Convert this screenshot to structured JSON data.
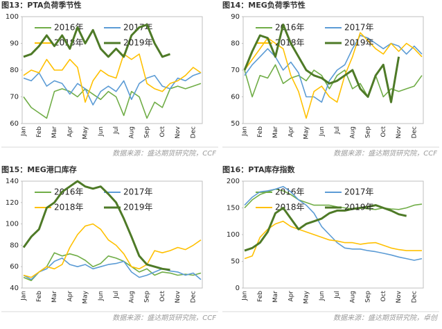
{
  "chart_data": [
    {
      "type": "line",
      "title": "图13：PTA负荷季节性",
      "source": "数据来源：盛达期货研究院，CCF",
      "categories": [
        "Jan",
        null,
        "Feb",
        null,
        "Mar",
        null,
        "Apr",
        null,
        "May",
        null,
        "Jun",
        null,
        "Jul",
        null,
        "Aug",
        null,
        "Sep",
        null,
        "Oct",
        null,
        "Nov",
        null,
        "Dec",
        null
      ],
      "ylim": [
        60,
        100
      ],
      "yticks": [
        60,
        70,
        80,
        90,
        100
      ],
      "series": [
        {
          "name": "2016年",
          "color": "#70ad47",
          "values": [
            70,
            66,
            64,
            62,
            72,
            73,
            72,
            70,
            73,
            71,
            69,
            72,
            70,
            63,
            72,
            70,
            62,
            68,
            66,
            73,
            74,
            73,
            74,
            75
          ]
        },
        {
          "name": "2017年",
          "color": "#5b9bd5",
          "values": [
            77,
            76,
            79,
            74,
            76,
            75,
            71,
            75,
            73,
            67,
            72,
            74,
            72,
            76,
            69,
            75,
            77,
            78,
            74,
            73,
            77,
            76,
            78,
            79
          ]
        },
        {
          "name": "2018年",
          "color": "#ffc000",
          "values": [
            78,
            80,
            79,
            84,
            80,
            80,
            84,
            81,
            68,
            76,
            80,
            78,
            77,
            86,
            84,
            86,
            75,
            73,
            72,
            75,
            76,
            78,
            81,
            79
          ]
        },
        {
          "name": "2019年",
          "color": "#4e7a27",
          "values": [
            85,
            86,
            89,
            93,
            89,
            93,
            88,
            96,
            90,
            95,
            88,
            85,
            88,
            85,
            93,
            96,
            97,
            90,
            85,
            86,
            null,
            null,
            null,
            null
          ]
        }
      ]
    },
    {
      "type": "line",
      "title": "图14：MEG负荷季节性",
      "source": "数据来源：盛达期货研究院，CCF",
      "categories": [
        "Jan",
        null,
        "Feb",
        null,
        "Mar",
        null,
        "Apr",
        null,
        "May",
        null,
        "Jun",
        null,
        "Jul",
        null,
        "Aug",
        null,
        "Sep",
        null,
        "Oct",
        null,
        "Nov",
        null,
        "Dec",
        null
      ],
      "ylim": [
        50,
        90
      ],
      "yticks": [
        50,
        60,
        70,
        80,
        90
      ],
      "series": [
        {
          "name": "2016年",
          "color": "#70ad47",
          "values": [
            70,
            60,
            68,
            67,
            72,
            65,
            67,
            68,
            66,
            70,
            68,
            63,
            68,
            70,
            63,
            65,
            60,
            68,
            60,
            63,
            62,
            63,
            64,
            68
          ]
        },
        {
          "name": "2017年",
          "color": "#5b9bd5",
          "values": [
            68,
            72,
            75,
            78,
            75,
            70,
            73,
            69,
            60,
            60,
            58,
            66,
            70,
            72,
            78,
            83,
            82,
            80,
            78,
            80,
            79,
            76,
            79,
            76
          ]
        },
        {
          "name": "2018年",
          "color": "#ffc000",
          "values": [
            70,
            74,
            78,
            82,
            80,
            78,
            68,
            62,
            52,
            62,
            64,
            60,
            58,
            68,
            75,
            84,
            81,
            78,
            76,
            80,
            77,
            80,
            78,
            75
          ]
        },
        {
          "name": "2019年",
          "color": "#4e7a27",
          "values": [
            70,
            77,
            83,
            82,
            75,
            87,
            80,
            75,
            70,
            68,
            67,
            65,
            66,
            68,
            70,
            63,
            60,
            68,
            72,
            58,
            75,
            null,
            null,
            null
          ]
        }
      ]
    },
    {
      "type": "line",
      "title": "图15：MEG港口库存",
      "source": "数据来源：盛达期货研究院，CCF",
      "categories": [
        "Jan",
        null,
        "Feb",
        null,
        "Mar",
        null,
        "Apr",
        null,
        "May",
        null,
        "Jun",
        null,
        "Jul",
        null,
        "Aug",
        null,
        "Sep",
        null,
        "Oct",
        null,
        "Nov",
        null,
        "Dec",
        null
      ],
      "ylim": [
        40,
        140
      ],
      "yticks": [
        40,
        60,
        80,
        100,
        120,
        140
      ],
      "series": [
        {
          "name": "2016年",
          "color": "#70ad47",
          "values": [
            50,
            47,
            55,
            60,
            73,
            70,
            72,
            70,
            66,
            60,
            63,
            70,
            68,
            65,
            60,
            55,
            58,
            52,
            55,
            54,
            52,
            53,
            52,
            54
          ]
        },
        {
          "name": "2017年",
          "color": "#5b9bd5",
          "values": [
            52,
            48,
            55,
            58,
            65,
            68,
            62,
            60,
            62,
            58,
            60,
            62,
            63,
            65,
            55,
            50,
            52,
            55,
            58,
            56,
            55,
            52,
            54,
            48
          ]
        },
        {
          "name": "2018年",
          "color": "#ffc000",
          "values": [
            52,
            50,
            55,
            60,
            58,
            62,
            78,
            90,
            98,
            100,
            95,
            85,
            80,
            72,
            60,
            58,
            62,
            75,
            73,
            75,
            78,
            76,
            80,
            85
          ]
        },
        {
          "name": "2019年",
          "color": "#4e7a27",
          "values": [
            78,
            88,
            95,
            115,
            120,
            130,
            135,
            140,
            135,
            133,
            135,
            128,
            120,
            105,
            88,
            70,
            62,
            60,
            58,
            57,
            null,
            null,
            null,
            null
          ]
        }
      ]
    },
    {
      "type": "line",
      "title": "图16：PTA库存指数",
      "source": "数据来源：盛达期货研究院，卓创",
      "categories": [
        "Jan",
        null,
        "Feb",
        null,
        "Mar",
        null,
        "Apr",
        null,
        "May",
        null,
        "Jun",
        null,
        "Jul",
        null,
        "Aug",
        null,
        "Sep",
        null,
        "Oct",
        null,
        "Nov",
        null,
        "Dec",
        null
      ],
      "ylim": [
        0,
        200
      ],
      "yticks": [
        0,
        50,
        100,
        150,
        200
      ],
      "series": [
        {
          "name": "2016年",
          "color": "#70ad47",
          "values": [
            150,
            165,
            175,
            180,
            185,
            182,
            175,
            165,
            160,
            155,
            155,
            155,
            152,
            150,
            148,
            150,
            148,
            147,
            150,
            148,
            147,
            150,
            155,
            157
          ]
        },
        {
          "name": "2017年",
          "color": "#5b9bd5",
          "values": [
            155,
            170,
            180,
            182,
            185,
            190,
            180,
            165,
            155,
            140,
            115,
            100,
            85,
            75,
            73,
            73,
            70,
            68,
            65,
            62,
            58,
            55,
            52,
            55
          ]
        },
        {
          "name": "2018年",
          "color": "#ffc000",
          "values": [
            55,
            60,
            95,
            110,
            120,
            125,
            115,
            110,
            105,
            100,
            95,
            90,
            88,
            85,
            85,
            82,
            84,
            85,
            80,
            75,
            72,
            70,
            70,
            70
          ]
        },
        {
          "name": "2019年",
          "color": "#4e7a27",
          "values": [
            70,
            75,
            85,
            105,
            140,
            150,
            130,
            110,
            120,
            125,
            130,
            140,
            145,
            145,
            148,
            150,
            152,
            155,
            150,
            145,
            138,
            135,
            null,
            null
          ]
        }
      ]
    }
  ]
}
